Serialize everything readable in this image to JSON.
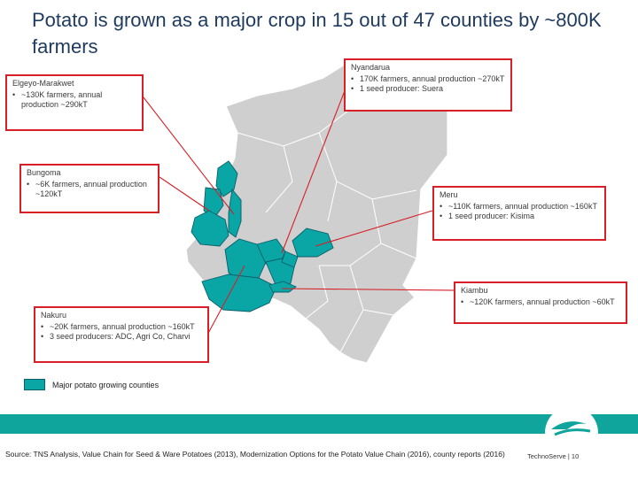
{
  "title": "Potato is grown as a major crop in 15 out of 47 counties by ~800K farmers",
  "callouts": {
    "elgeyo": {
      "name": "Elgeyo-Marakwet",
      "bullets": [
        "~130K farmers, annual production ~290kT"
      ]
    },
    "nyandarua": {
      "name": "Nyandarua",
      "bullets": [
        "170K farmers, annual production ~270kT",
        "1 seed producer: Suera"
      ]
    },
    "bungoma": {
      "name": "Bungoma",
      "bullets": [
        "~6K farmers, annual production ~120kT"
      ]
    },
    "meru": {
      "name": "Meru",
      "bullets": [
        "~110K farmers, annual production ~160kT",
        "1 seed producer: Kisima"
      ]
    },
    "kiambu": {
      "name": "Kiambu",
      "bullets": [
        "~120K farmers, annual production ~60kT"
      ]
    },
    "nakuru": {
      "name": "Nakuru",
      "bullets": [
        "~20K farmers, annual production ~160kT",
        "3 seed producers: ADC, Agri Co, Charvi"
      ]
    }
  },
  "legend": {
    "label": "Major potato growing counties",
    "color": "#0aa6a6"
  },
  "footer": {
    "source": "Source: TNS Analysis, Value Chain for Seed & Ware Potatoes (2013), Modernization Options for the Potato Value Chain (2016), county reports (2016)",
    "brand": "TechnoServe | 10"
  },
  "colors": {
    "map_base": "#cfcfcf",
    "highlight": "#0aa6a6",
    "callout_border": "#d61f26",
    "footer_band": "#0fa59d"
  }
}
